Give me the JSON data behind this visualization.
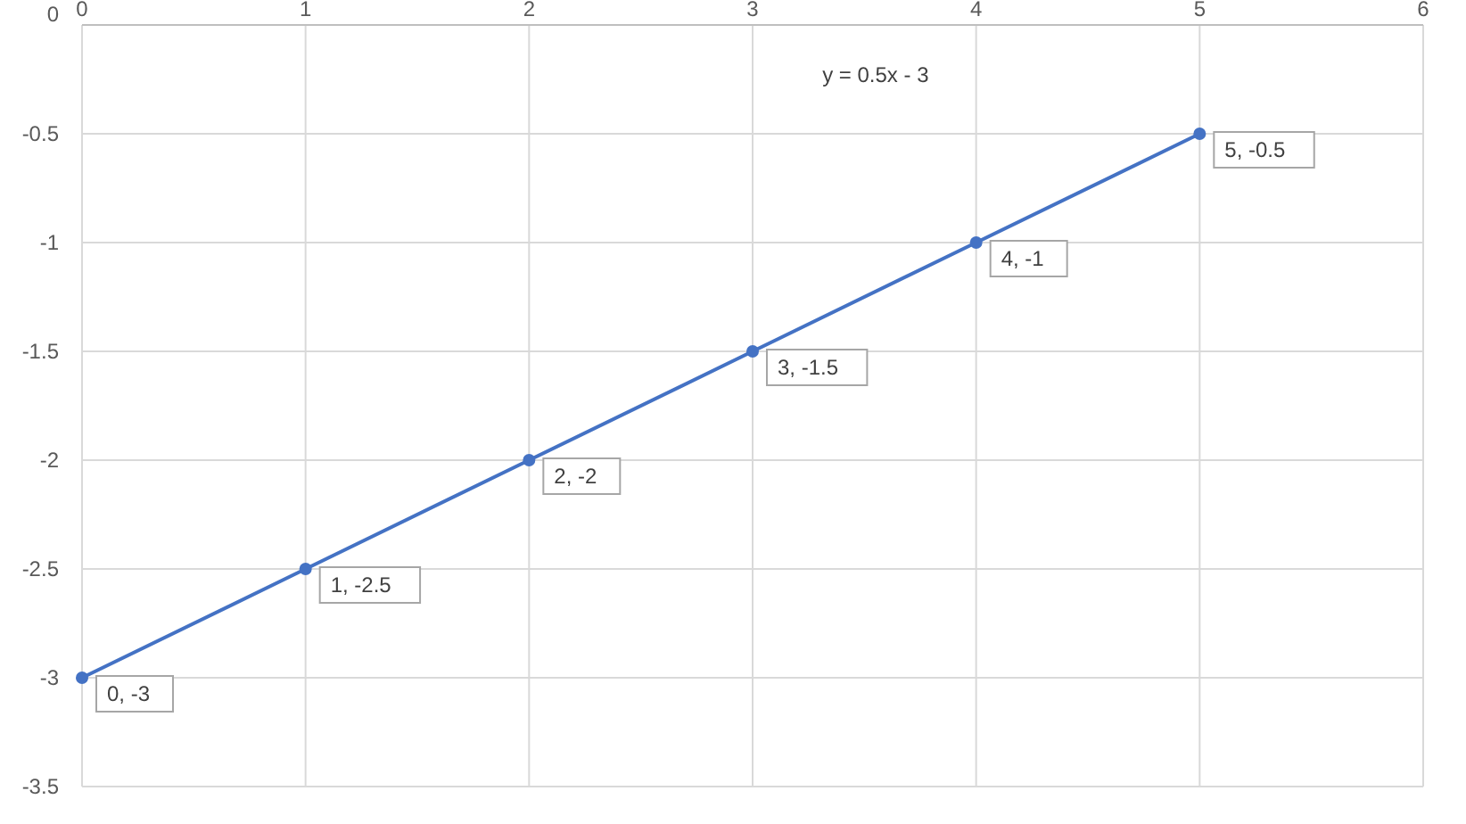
{
  "chart_data": {
    "type": "line",
    "title": "y = 0.5x - 3",
    "x": [
      0,
      1,
      2,
      3,
      4,
      5
    ],
    "series": [
      {
        "color": "#4472c4",
        "values": [
          -3,
          -2.5,
          -2,
          -1.5,
          -1,
          -0.5
        ],
        "value_labels": [
          "0, -3",
          "1, -2.5",
          "2, -2",
          "3, -1.5",
          "4, -1",
          "5, -0.5"
        ]
      }
    ],
    "xlim": [
      0,
      6
    ],
    "xticks": [
      0,
      1,
      2,
      3,
      4,
      5,
      6
    ],
    "ylim": [
      -3.5,
      0
    ],
    "yticks": [
      0,
      -0.5,
      -1,
      -1.5,
      -2,
      -2.5,
      -3,
      -3.5
    ],
    "grid": true,
    "marker": "circle",
    "line_style": "solid"
  }
}
